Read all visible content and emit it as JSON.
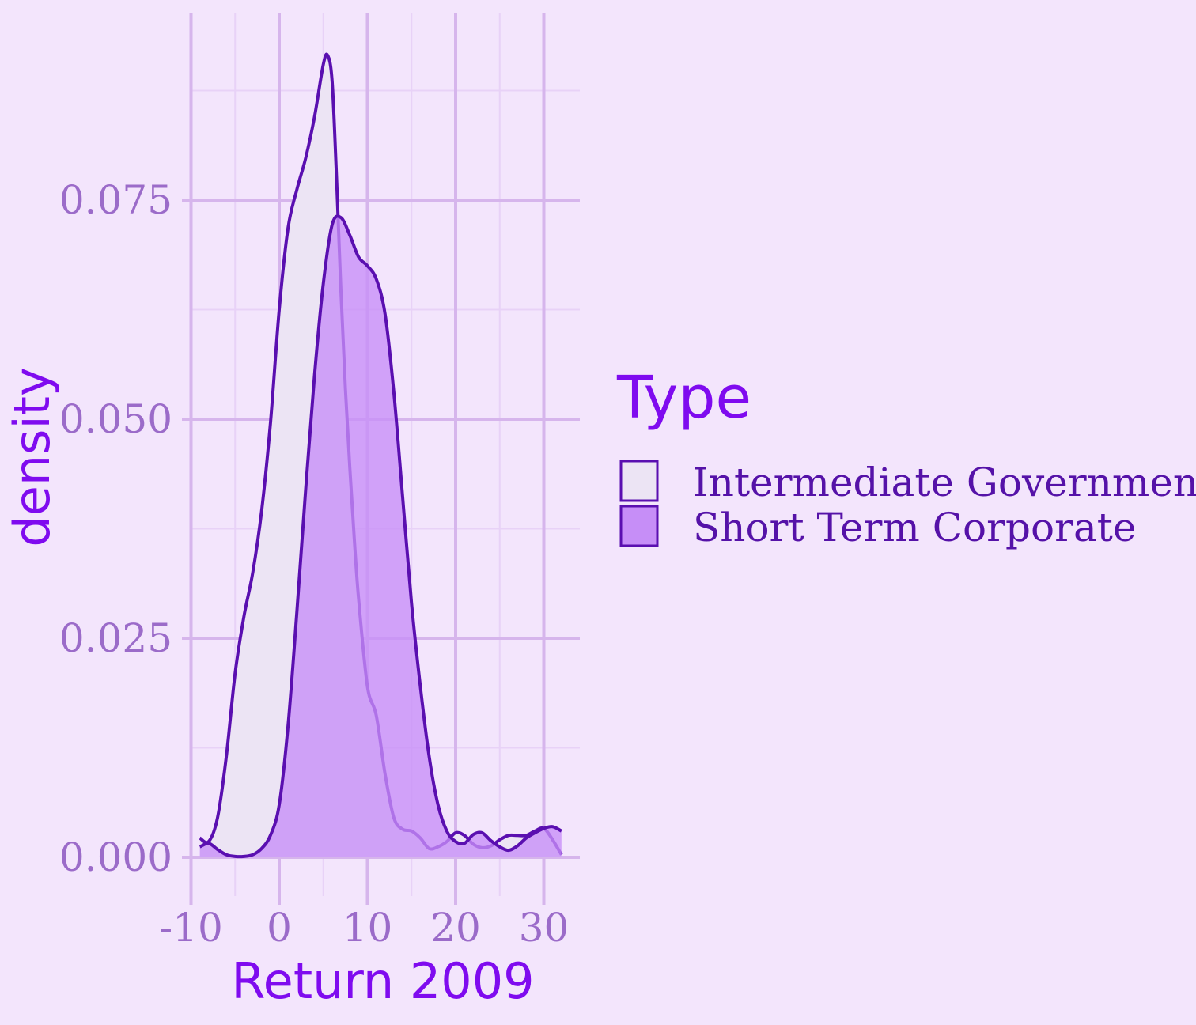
{
  "chart_data": {
    "type": "area",
    "title": "",
    "xlabel": "Return 2009",
    "ylabel": "density",
    "xlim": [
      -10,
      32
    ],
    "ylim": [
      -0.0035,
      0.0965
    ],
    "x_ticks": [
      -10,
      0,
      10,
      20,
      30
    ],
    "x_tick_labels": [
      "-10",
      "0",
      "10",
      "20",
      "30"
    ],
    "y_ticks": [
      0,
      0.025,
      0.05,
      0.075
    ],
    "y_tick_labels": [
      "0.000",
      "0.025",
      "0.050",
      "0.075"
    ],
    "grid": true,
    "legend": {
      "title": "Type",
      "placement": "right",
      "entries": [
        "Intermediate Government",
        "Short Term Corporate"
      ]
    },
    "colors": {
      "background": "#f3e5fc",
      "grid_major": "#d6b5ec",
      "grid_minor": "#e8d2f7",
      "outline": "#5a0fb0",
      "intermediate_government_fill": "#ece4f4",
      "short_term_corporate_fill": "#c68ef7"
    },
    "series": [
      {
        "name": "Intermediate Government",
        "x": [
          -9,
          -8,
          -7,
          -6,
          -5,
          -4,
          -3,
          -2,
          -1,
          0,
          1,
          2,
          3,
          4,
          5,
          5.5,
          6,
          6.5,
          7,
          7.5,
          8,
          8.5,
          9,
          10,
          11,
          12,
          13,
          14,
          15,
          16,
          17,
          18,
          19,
          20,
          21,
          22,
          23,
          24,
          25,
          26,
          27,
          28,
          29,
          30,
          31,
          32
        ],
        "y": [
          0.0022,
          0.0018,
          0.0045,
          0.0115,
          0.021,
          0.0275,
          0.0325,
          0.0395,
          0.0495,
          0.0625,
          0.0718,
          0.0762,
          0.0798,
          0.0845,
          0.0905,
          0.0915,
          0.0885,
          0.0775,
          0.0645,
          0.0535,
          0.0445,
          0.0365,
          0.0295,
          0.0195,
          0.0162,
          0.0095,
          0.0045,
          0.0032,
          0.003,
          0.0022,
          0.001,
          0.0012,
          0.0018,
          0.0028,
          0.0025,
          0.0015,
          0.0011,
          0.0013,
          0.002,
          0.0025,
          0.0025,
          0.0025,
          0.003,
          0.0033,
          0.002,
          0.0003
        ]
      },
      {
        "name": "Short Term Corporate",
        "x": [
          -9,
          -8,
          -7,
          -6,
          -5,
          -4,
          -3,
          -2,
          -1,
          0,
          1,
          2,
          3,
          4,
          5,
          6,
          7,
          8,
          9,
          10,
          11,
          12,
          13,
          14,
          15,
          16,
          17,
          18,
          19,
          20,
          21,
          22,
          23,
          24,
          25,
          26,
          27,
          28,
          29,
          30,
          31,
          32
        ],
        "y": [
          0.0012,
          0.0016,
          0.0009,
          0.0003,
          0.0001,
          0.0001,
          0.0003,
          0.001,
          0.0025,
          0.006,
          0.015,
          0.028,
          0.042,
          0.055,
          0.0655,
          0.0722,
          0.073,
          0.071,
          0.0685,
          0.0675,
          0.066,
          0.062,
          0.053,
          0.041,
          0.029,
          0.0195,
          0.0115,
          0.006,
          0.003,
          0.0018,
          0.0016,
          0.0026,
          0.0028,
          0.0019,
          0.0012,
          0.0008,
          0.0013,
          0.0022,
          0.0028,
          0.0033,
          0.0035,
          0.003
        ]
      }
    ]
  }
}
